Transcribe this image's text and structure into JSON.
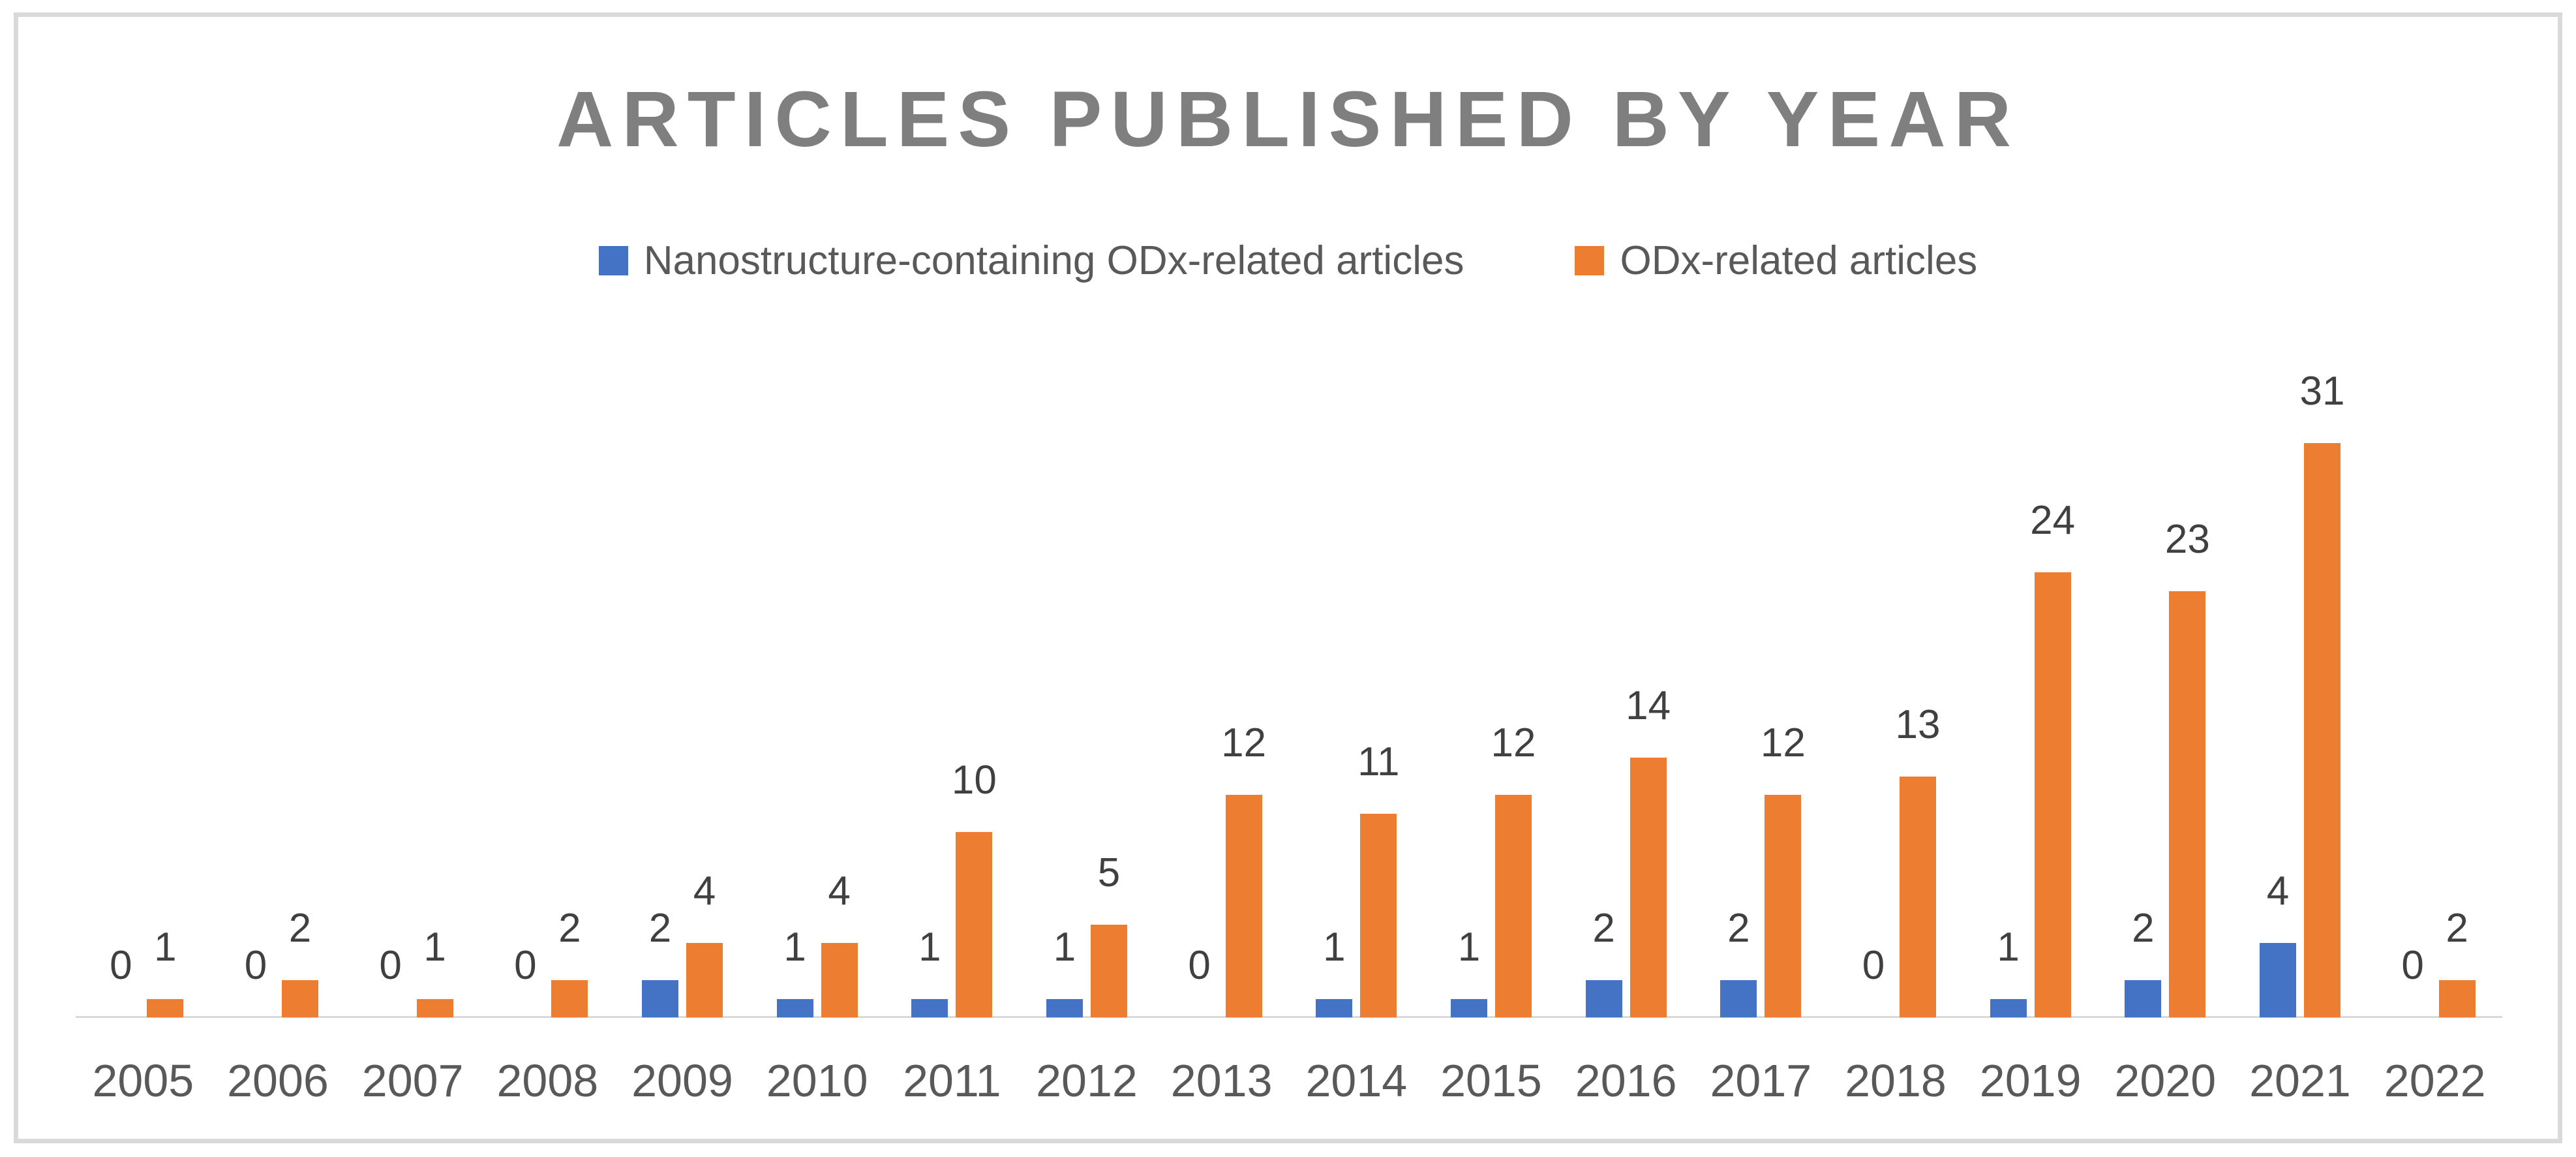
{
  "title": {
    "text": "ARTICLES PUBLISHED BY YEAR",
    "color": "#7F7F7F"
  },
  "legend": {
    "items": [
      {
        "label": "Nanostructure-containing ODx-related articles",
        "color": "#4472C4"
      },
      {
        "label": "ODx-related articles",
        "color": "#ED7D31"
      }
    ]
  },
  "chart_data": {
    "type": "bar",
    "title": "ARTICLES PUBLISHED BY YEAR",
    "categories": [
      "2005",
      "2006",
      "2007",
      "2008",
      "2009",
      "2010",
      "2011",
      "2012",
      "2013",
      "2014",
      "2015",
      "2016",
      "2017",
      "2018",
      "2019",
      "2020",
      "2021",
      "2022"
    ],
    "series": [
      {
        "name": "Nanostructure-containing ODx-related articles",
        "color": "#4472C4",
        "values": [
          0,
          0,
          0,
          0,
          2,
          1,
          1,
          1,
          0,
          1,
          1,
          2,
          2,
          0,
          1,
          2,
          4,
          0
        ]
      },
      {
        "name": "ODx-related articles",
        "color": "#ED7D31",
        "values": [
          1,
          2,
          1,
          2,
          4,
          4,
          10,
          5,
          12,
          11,
          12,
          14,
          12,
          13,
          24,
          23,
          31,
          2
        ]
      }
    ],
    "xlabel": "",
    "ylabel": "",
    "ylim": [
      0,
      31
    ],
    "grid": false,
    "y_axis_visible": false,
    "legend_position": "top",
    "data_labels": true,
    "axis_line_color": "#D9D9D9",
    "data_label_color": "#404040",
    "tick_label_color": "#595959",
    "frame_border_color": "#D9D9D9"
  }
}
